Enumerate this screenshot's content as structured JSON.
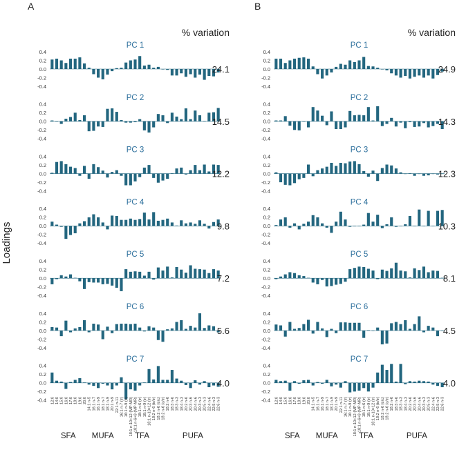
{
  "figure": {
    "y_label": "Loadings",
    "variation_header": "% variation",
    "bar_color": "#23667f",
    "title_color": "#2c6f9c",
    "y_ticks": [
      "0.4",
      "0.2",
      "0.0",
      "-0.2",
      "-0.4"
    ],
    "group_labels": [
      "SFA",
      "MUFA",
      "TFA",
      "PUFA"
    ]
  },
  "chart_data": [
    {
      "type": "bar",
      "panel": "A",
      "ylim": [
        -0.4,
        0.4
      ],
      "categories": [
        "12:0",
        "14:0",
        "15:0",
        "16:0",
        "17:0",
        "18:0",
        "19:0",
        "20:0",
        "14:1 n-5",
        "16:1 n-7",
        "16:1 n-9",
        "18:1 n-7",
        "18:1 n-9",
        "20:1 n-9",
        "22:1 n-11",
        "16:1 n-7 (tr)",
        "16:1 n-9 (tr)",
        "18:1 n-10+12 (MP-MR)",
        "18:1 n-6+8 (MP-MR)",
        "18:1 n-6 (tr)",
        "18:1 n-9 (tr)",
        "18:1 n-10+12 (tr)",
        "18:2 n-6 (tr/tr)",
        "18:2 n-6 (tr/c)",
        "18:2 n-6 (c/tr)",
        "18:2 n-6",
        "18:3 n-6",
        "18:3 n-3",
        "18:4 n-3",
        "20:2 n-6",
        "20:3 n-6",
        "20:4 n-6",
        "20:3 n-3",
        "20:5 n-3",
        "22:4 n-6",
        "22:5 n-3",
        "22:6 n-3"
      ],
      "groups": [
        {
          "label": "SFA",
          "from": 0,
          "to": 7
        },
        {
          "label": "MUFA",
          "from": 8,
          "to": 14
        },
        {
          "label": "TFA",
          "from": 15,
          "to": 24
        },
        {
          "label": "PUFA",
          "from": 25,
          "to": 36
        }
      ],
      "series": [
        {
          "name": "PC 1",
          "variation": "24.1",
          "values": [
            0.22,
            0.24,
            0.2,
            0.14,
            0.24,
            0.24,
            0.27,
            0.13,
            0.03,
            -0.12,
            -0.2,
            -0.24,
            -0.13,
            -0.05,
            0.02,
            0.03,
            0.15,
            0.2,
            0.22,
            0.3,
            0.08,
            0.1,
            0.03,
            0.05,
            0,
            -0.02,
            -0.15,
            -0.15,
            -0.1,
            -0.18,
            -0.12,
            -0.2,
            -0.13,
            -0.25,
            -0.16,
            -0.17,
            -0.08
          ]
        },
        {
          "name": "PC 2",
          "variation": "14.5",
          "values": [
            0.02,
            0.0,
            -0.06,
            0.06,
            0.1,
            0.2,
            0.03,
            0.14,
            -0.23,
            -0.22,
            -0.12,
            -0.13,
            0.29,
            0.3,
            0.22,
            0.03,
            -0.03,
            -0.03,
            -0.02,
            0.05,
            -0.21,
            -0.26,
            -0.14,
            0.17,
            0.14,
            -0.04,
            0.2,
            0.11,
            0.05,
            0.3,
            0.05,
            0.25,
            0.14,
            0.01,
            0.2,
            0.21,
            0.31
          ]
        },
        {
          "name": "PC 3",
          "variation": "12.2",
          "values": [
            0.02,
            0.27,
            0.29,
            0.22,
            0.16,
            0.13,
            -0.05,
            0.18,
            -0.12,
            0.22,
            0.15,
            0.07,
            -0.09,
            0.04,
            0.08,
            -0.05,
            -0.27,
            -0.27,
            -0.18,
            -0.08,
            0.14,
            0.2,
            -0.1,
            -0.21,
            -0.16,
            -0.12,
            0.01,
            0.12,
            0.14,
            -0.02,
            0.08,
            0.2,
            0.08,
            0.21,
            0.05,
            0.21,
            0.2
          ]
        },
        {
          "name": "PC 4",
          "variation": "9.8",
          "values": [
            0.1,
            0.03,
            -0.02,
            -0.3,
            -0.21,
            -0.17,
            0.06,
            0.11,
            0.2,
            0.27,
            0.2,
            0.08,
            -0.08,
            0.24,
            0.23,
            0.14,
            0.14,
            0.17,
            0.14,
            0.16,
            0.31,
            0.15,
            0.32,
            0.12,
            0.14,
            0.17,
            0.08,
            0.01,
            0.13,
            0.06,
            0.08,
            0.05,
            0.13,
            0.05,
            -0.06,
            0.09,
            0.15
          ]
        },
        {
          "name": "PC 5",
          "variation": "7.2",
          "values": [
            -0.14,
            -0.02,
            0.07,
            0.04,
            0.09,
            0.01,
            -0.07,
            -0.25,
            -0.09,
            -0.1,
            -0.1,
            -0.14,
            -0.13,
            -0.17,
            -0.22,
            -0.3,
            0.21,
            0.15,
            0.16,
            0.15,
            0.06,
            0.15,
            -0.03,
            0.25,
            0.18,
            0.27,
            0.02,
            0.26,
            0.2,
            0.13,
            0.3,
            0.22,
            0.21,
            0.2,
            0.12,
            0.21,
            0.18
          ]
        },
        {
          "name": "PC 6",
          "variation": "5.6",
          "values": [
            0.08,
            0.07,
            -0.13,
            0.23,
            -0.04,
            0.05,
            0.08,
            0.24,
            -0.04,
            0.16,
            0.14,
            -0.2,
            0.09,
            -0.06,
            0.15,
            0.16,
            0.16,
            0.15,
            0.16,
            0.07,
            -0.02,
            0.1,
            0.07,
            -0.22,
            -0.26,
            0.03,
            0.05,
            0.2,
            0.24,
            0.04,
            0.11,
            0.07,
            0.4,
            0.06,
            0.12,
            0.1,
            -0.04
          ]
        },
        {
          "name": "PC 7",
          "variation": "4.0",
          "values": [
            0.24,
            0.05,
            0.03,
            -0.14,
            0.02,
            0.07,
            0.11,
            0.01,
            -0.04,
            -0.07,
            -0.12,
            -0.02,
            -0.06,
            -0.15,
            -0.06,
            0.13,
            -0.38,
            -0.15,
            -0.18,
            -0.06,
            0.01,
            0.32,
            0.08,
            0.39,
            0.07,
            0.07,
            0.3,
            0.1,
            0.05,
            -0.05,
            -0.12,
            0.06,
            -0.04,
            0.04,
            -0.1,
            -0.06,
            -0.09
          ]
        }
      ]
    },
    {
      "type": "bar",
      "panel": "B",
      "ylim": [
        -0.4,
        0.4
      ],
      "categories": [
        "12:0",
        "14:0",
        "15:0",
        "16:0",
        "17:0",
        "18:0",
        "19:0",
        "20:0",
        "14:1 n-5",
        "16:1 n-7",
        "16:1 n-9",
        "18:1 n-7",
        "18:1 n-9",
        "20:1 n-9",
        "22:1 n-11",
        "16:1 n-7 (tr)",
        "16:1 n-9 (tr)",
        "18:1 n-10+12 (MP-MR)",
        "18:1 n-6+8 (MP-MR)",
        "18:1 n-6 (tr)",
        "18:1 n-9 (tr)",
        "18:1 n-10+12 (tr)",
        "18:2 n-6 (tr/tr)",
        "18:2 n-6 (tr/c)",
        "18:2 n-6 (c/tr)",
        "18:2 n-6",
        "18:3 n-6",
        "18:3 n-3",
        "18:4 n-3",
        "20:2 n-6",
        "20:3 n-6",
        "20:4 n-6",
        "20:3 n-3",
        "20:5 n-3",
        "22:4 n-6",
        "22:5 n-3",
        "22:6 n-3"
      ],
      "groups": [
        {
          "label": "SFA",
          "from": 0,
          "to": 7
        },
        {
          "label": "MUFA",
          "from": 8,
          "to": 14
        },
        {
          "label": "TFA",
          "from": 15,
          "to": 24
        },
        {
          "label": "PUFA",
          "from": 25,
          "to": 36
        }
      ],
      "series": [
        {
          "name": "PC 1",
          "variation": "24.9",
          "values": [
            0.24,
            0.24,
            0.14,
            0.2,
            0.24,
            0.26,
            0.27,
            0.24,
            0.06,
            -0.12,
            -0.22,
            -0.15,
            -0.08,
            0.05,
            0.12,
            0.1,
            0.2,
            0.16,
            0.2,
            0.28,
            0.07,
            0.06,
            0.03,
            0,
            -0.03,
            -0.1,
            -0.15,
            -0.2,
            -0.16,
            -0.22,
            -0.18,
            -0.15,
            -0.2,
            -0.15,
            -0.22,
            -0.14,
            -0.06
          ]
        },
        {
          "name": "PC 2",
          "variation": "14.3",
          "values": [
            0.02,
            0.02,
            0.12,
            -0.1,
            -0.2,
            -0.21,
            0.0,
            -0.14,
            0.33,
            0.25,
            0.13,
            -0.09,
            0.23,
            -0.18,
            -0.18,
            -0.14,
            0.24,
            0.14,
            0.15,
            0.14,
            0.33,
            0.02,
            0.35,
            -0.11,
            -0.06,
            0.08,
            -0.12,
            -0.03,
            -0.16,
            -0.02,
            -0.13,
            -0.12,
            -0.04,
            -0.14,
            -0.11,
            -0.06,
            -0.18
          ]
        },
        {
          "name": "PC 3",
          "variation": "12.3",
          "values": [
            0.03,
            -0.2,
            -0.26,
            -0.27,
            -0.22,
            -0.13,
            -0.1,
            0.21,
            -0.06,
            0.08,
            0.12,
            0.16,
            0.25,
            0.18,
            0.25,
            0.24,
            0.28,
            0.29,
            0.22,
            0.06,
            -0.07,
            0.07,
            -0.17,
            0.13,
            0.21,
            0.19,
            0.12,
            0.03,
            -0.01,
            0.01,
            -0.05,
            0.0,
            -0.05,
            -0.04,
            0.0,
            -0.02,
            0.0
          ]
        },
        {
          "name": "PC 4",
          "variation": "10.3",
          "values": [
            0.02,
            0.15,
            0.2,
            -0.04,
            0.06,
            -0.08,
            0.05,
            0.1,
            0.25,
            0.2,
            0.06,
            -0.04,
            -0.16,
            0.1,
            0.33,
            0.15,
            -0.02,
            -0.01,
            0.0,
            0.03,
            0.3,
            0.1,
            0.26,
            -0.05,
            0.04,
            0.2,
            -0.02,
            0.0,
            0.04,
            0.23,
            0.0,
            0.38,
            0.0,
            0.35,
            0.0,
            0.35,
            0.37
          ]
        },
        {
          "name": "PC 5",
          "variation": "8.1",
          "values": [
            -0.02,
            0.04,
            0.09,
            0.14,
            0.12,
            0.07,
            0.05,
            0.01,
            -0.1,
            -0.14,
            -0.04,
            -0.19,
            -0.18,
            -0.15,
            -0.13,
            -0.08,
            0.21,
            0.24,
            0.27,
            0.26,
            0.22,
            0.18,
            -0.02,
            0.2,
            0.17,
            0.23,
            0.36,
            0.18,
            0.16,
            0.02,
            0.23,
            0.19,
            0.27,
            0.14,
            0.18,
            0.17,
            0.01
          ]
        },
        {
          "name": "PC 6",
          "variation": "4.5",
          "values": [
            0.14,
            0.12,
            -0.14,
            0.2,
            0.04,
            0.06,
            0.15,
            0.25,
            -0.07,
            0.2,
            0.05,
            -0.15,
            0.04,
            -0.06,
            0.19,
            0.19,
            0.18,
            0.18,
            0.18,
            -0.17,
            0.01,
            -0.01,
            0.07,
            -0.32,
            -0.3,
            0.17,
            0.2,
            0.15,
            0.24,
            0.04,
            0.15,
            0.33,
            -0.04,
            0.11,
            0.07,
            -0.13,
            0.0
          ]
        },
        {
          "name": "PC 7",
          "variation": "4.0",
          "values": [
            0.07,
            0.04,
            0.05,
            -0.18,
            0.04,
            -0.02,
            0.06,
            0.07,
            -0.06,
            0.02,
            -0.02,
            0.07,
            -0.08,
            -0.04,
            -0.11,
            0.04,
            -0.22,
            -0.2,
            -0.18,
            -0.12,
            -0.2,
            -0.11,
            0.24,
            0.42,
            0.3,
            0.44,
            0.03,
            0.44,
            -0.03,
            0.04,
            0.03,
            0.05,
            0.04,
            0.03,
            -0.04,
            -0.07,
            -0.1
          ]
        }
      ]
    }
  ]
}
